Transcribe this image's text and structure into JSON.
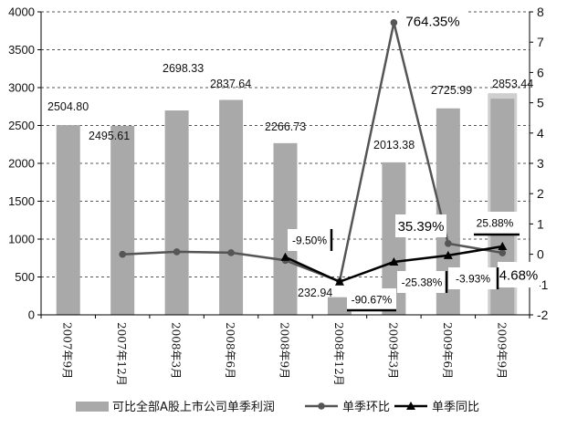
{
  "chart_data": {
    "type": "bar",
    "categories": [
      "2007年9月",
      "2007年12月",
      "2008年3月",
      "2008年6月",
      "2008年9月",
      "2008年12月",
      "2009年3月",
      "2009年6月",
      "2009年9月"
    ],
    "series": [
      {
        "name": "可比全部A股上市公司单季利润",
        "type": "bar",
        "axis": "left",
        "values": [
          2504.8,
          2495.61,
          2698.33,
          2837.64,
          2266.73,
          232.94,
          2013.38,
          2725.99,
          2853.44
        ],
        "labels": [
          "2504.80",
          "2495.61",
          "2698.33",
          "2837.64",
          "2266.73",
          "232.94",
          "2013.38",
          "2725.99",
          "2853.44"
        ]
      },
      {
        "name": "单季环比",
        "type": "line",
        "axis": "right",
        "marker": "circle",
        "values": [
          null,
          -0.0037,
          0.0812,
          0.0516,
          -0.2012,
          -0.8972,
          7.6435,
          0.3539,
          0.0468
        ]
      },
      {
        "name": "单季同比",
        "type": "line",
        "axis": "right",
        "marker": "triangle",
        "values": [
          null,
          null,
          null,
          null,
          -0.095,
          -0.9067,
          -0.2538,
          -0.0393,
          0.2588
        ]
      }
    ],
    "annotations": [
      "-9.50%",
      "-90.67%",
      "764.35%",
      "35.39%",
      "-25.38%",
      "-3.93%",
      "25.88%",
      "4.68%"
    ],
    "ylim_left": [
      0,
      4000
    ],
    "ylim_right": [
      -2,
      8
    ],
    "yticks_left": [
      "0",
      "500",
      "1000",
      "1500",
      "2000",
      "2500",
      "3000",
      "3500",
      "4000"
    ],
    "yticks_right": [
      "-2",
      "-1",
      "0",
      "1",
      "2",
      "3",
      "4",
      "5",
      "6",
      "7",
      "8"
    ],
    "grid": "horizontal dashed",
    "legend": "bottom",
    "title": "",
    "xlabel": "",
    "ylabel": "",
    "colors": {
      "bar": "#a9a9a9",
      "bar_highlight": "#cfcfcf",
      "huanbi": "#555555",
      "tongbi": "#000000"
    }
  }
}
